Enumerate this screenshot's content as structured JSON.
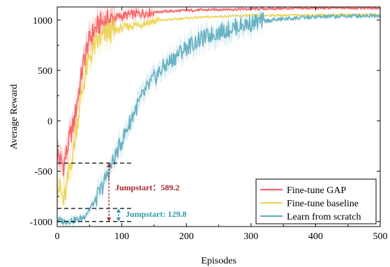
{
  "chart_data": {
    "type": "line",
    "title": "",
    "xlabel": "Episodes",
    "ylabel": "Average Reward",
    "xlim": [
      0,
      500
    ],
    "ylim": [
      -1050,
      1130
    ],
    "x_ticks": [
      0,
      100,
      200,
      300,
      400,
      500
    ],
    "y_ticks": [
      -1000,
      -500,
      0,
      500,
      1000
    ],
    "x_tick_labels": [
      "0",
      "100",
      "200",
      "300",
      "400",
      "500"
    ],
    "y_tick_labels": [
      "-1000",
      "-500",
      "0",
      "500",
      "1000"
    ],
    "grid": false,
    "legend_position": "bottom-right",
    "series": [
      {
        "name": "Fine-tune GAP",
        "color": "#f8676c",
        "band_color": "#f8676c",
        "points": [
          [
            0,
            -320
          ],
          [
            5,
            -400
          ],
          [
            10,
            -440
          ],
          [
            15,
            -300
          ],
          [
            20,
            -150
          ],
          [
            25,
            -50
          ],
          [
            30,
            150
          ],
          [
            35,
            350
          ],
          [
            40,
            550
          ],
          [
            45,
            700
          ],
          [
            50,
            800
          ],
          [
            55,
            870
          ],
          [
            60,
            920
          ],
          [
            65,
            955
          ],
          [
            70,
            980
          ],
          [
            80,
            1000
          ],
          [
            90,
            1020
          ],
          [
            100,
            1040
          ],
          [
            120,
            1060
          ],
          [
            150,
            1080
          ],
          [
            200,
            1095
          ],
          [
            250,
            1105
          ],
          [
            300,
            1110
          ],
          [
            350,
            1115
          ],
          [
            400,
            1118
          ],
          [
            450,
            1120
          ],
          [
            500,
            1120
          ]
        ]
      },
      {
        "name": "Fine-tune baseline",
        "color": "#ecd55a",
        "band_color": "#f1e186",
        "points": [
          [
            0,
            -600
          ],
          [
            5,
            -700
          ],
          [
            10,
            -800
          ],
          [
            15,
            -650
          ],
          [
            20,
            -450
          ],
          [
            25,
            -300
          ],
          [
            30,
            -50
          ],
          [
            35,
            150
          ],
          [
            40,
            350
          ],
          [
            45,
            500
          ],
          [
            50,
            620
          ],
          [
            55,
            700
          ],
          [
            60,
            760
          ],
          [
            70,
            830
          ],
          [
            80,
            880
          ],
          [
            100,
            920
          ],
          [
            120,
            950
          ],
          [
            150,
            990
          ],
          [
            200,
            1020
          ],
          [
            250,
            1035
          ],
          [
            300,
            1045
          ],
          [
            350,
            1048
          ],
          [
            400,
            1050
          ],
          [
            450,
            1052
          ],
          [
            500,
            1055
          ]
        ]
      },
      {
        "name": "Learn from scratch",
        "color": "#67b1c2",
        "band_color": "#a7d3e1",
        "points": [
          [
            0,
            -980
          ],
          [
            10,
            -1000
          ],
          [
            20,
            -990
          ],
          [
            30,
            -985
          ],
          [
            40,
            -960
          ],
          [
            50,
            -880
          ],
          [
            60,
            -780
          ],
          [
            70,
            -650
          ],
          [
            80,
            -500
          ],
          [
            90,
            -350
          ],
          [
            100,
            -200
          ],
          [
            110,
            -50
          ],
          [
            120,
            100
          ],
          [
            130,
            220
          ],
          [
            140,
            330
          ],
          [
            150,
            420
          ],
          [
            160,
            500
          ],
          [
            170,
            560
          ],
          [
            180,
            620
          ],
          [
            190,
            680
          ],
          [
            200,
            730
          ],
          [
            220,
            800
          ],
          [
            240,
            860
          ],
          [
            260,
            900
          ],
          [
            280,
            940
          ],
          [
            300,
            970
          ],
          [
            320,
            990
          ],
          [
            340,
            1005
          ],
          [
            360,
            1015
          ],
          [
            380,
            1025
          ],
          [
            400,
            1030
          ],
          [
            450,
            1040
          ],
          [
            500,
            1048
          ]
        ]
      }
    ],
    "annotations": [
      {
        "label": "Jumpstart：589.2",
        "color": "#a5252b",
        "x": 80,
        "y_from": -1000,
        "y_to": -420
      },
      {
        "label": "Jumpstart: 129.8",
        "color": "#2c9aa8",
        "x": 95,
        "y_from": -1000,
        "y_to": -870
      }
    ],
    "reference_lines": [
      -420,
      -870,
      -1000
    ]
  }
}
